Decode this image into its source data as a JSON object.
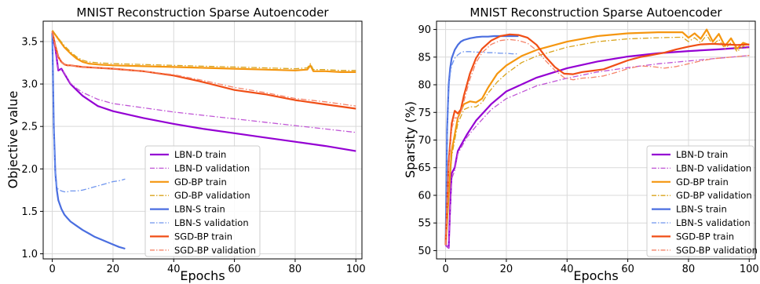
{
  "chart_data": [
    {
      "type": "line",
      "title": "MNIST Reconstruction Sparse Autoencoder",
      "xlabel": "Epochs",
      "ylabel": "Objective value",
      "xlim": [
        -3,
        102
      ],
      "ylim": [
        0.94,
        3.74
      ],
      "xticks": [
        0,
        20,
        40,
        60,
        80,
        100
      ],
      "yticks": [
        1.0,
        1.5,
        2.0,
        2.5,
        3.0,
        3.5
      ],
      "ytick_labels": [
        "1.0",
        "1.5",
        "2.0",
        "2.5",
        "3.0",
        "3.5"
      ],
      "grid": true,
      "legend_position": "lower-right",
      "series": [
        {
          "name": "LBN-D train",
          "color": "#9400d3",
          "style": "solid",
          "x": [
            0,
            1,
            2,
            3,
            4,
            5,
            6,
            8,
            10,
            15,
            20,
            30,
            40,
            50,
            60,
            70,
            80,
            90,
            100
          ],
          "values": [
            3.6,
            3.42,
            3.16,
            3.18,
            3.12,
            3.06,
            3.0,
            2.93,
            2.86,
            2.74,
            2.68,
            2.6,
            2.53,
            2.47,
            2.42,
            2.37,
            2.32,
            2.27,
            2.21
          ]
        },
        {
          "name": "LBN-D validation",
          "color": "#c055d6",
          "style": "dashdot",
          "x": [
            0,
            1,
            2,
            3,
            4,
            5,
            6,
            8,
            10,
            15,
            20,
            30,
            40,
            50,
            60,
            70,
            80,
            90,
            100
          ],
          "values": [
            3.6,
            3.42,
            3.17,
            3.17,
            3.13,
            3.07,
            3.01,
            2.95,
            2.9,
            2.82,
            2.77,
            2.72,
            2.67,
            2.63,
            2.59,
            2.55,
            2.51,
            2.47,
            2.43
          ]
        },
        {
          "name": "GD-BP train",
          "color": "#f5960f",
          "style": "solid",
          "x": [
            0,
            2,
            4,
            6,
            8,
            10,
            12,
            15,
            20,
            30,
            40,
            50,
            60,
            70,
            80,
            84,
            85,
            86,
            88,
            90,
            95,
            100
          ],
          "values": [
            3.63,
            3.53,
            3.43,
            3.36,
            3.3,
            3.26,
            3.24,
            3.23,
            3.22,
            3.21,
            3.2,
            3.19,
            3.18,
            3.17,
            3.16,
            3.17,
            3.22,
            3.15,
            3.15,
            3.15,
            3.14,
            3.14
          ]
        },
        {
          "name": "GD-BP validation",
          "color": "#d9a41c",
          "style": "dashdot",
          "x": [
            0,
            2,
            4,
            6,
            8,
            10,
            12,
            15,
            20,
            30,
            40,
            50,
            60,
            70,
            80,
            84,
            85,
            86,
            88,
            90,
            95,
            100
          ],
          "values": [
            3.63,
            3.54,
            3.45,
            3.38,
            3.32,
            3.28,
            3.26,
            3.25,
            3.24,
            3.23,
            3.22,
            3.21,
            3.2,
            3.19,
            3.18,
            3.19,
            3.24,
            3.17,
            3.17,
            3.17,
            3.16,
            3.16
          ]
        },
        {
          "name": "LBN-S train",
          "color": "#4a6ee0",
          "style": "solid",
          "x": [
            0,
            0.5,
            1,
            1.5,
            2,
            3,
            4,
            5,
            6,
            8,
            10,
            12,
            14,
            16,
            18,
            20,
            22,
            24
          ],
          "values": [
            3.6,
            2.5,
            1.95,
            1.75,
            1.63,
            1.53,
            1.46,
            1.42,
            1.38,
            1.33,
            1.28,
            1.24,
            1.2,
            1.17,
            1.14,
            1.11,
            1.08,
            1.06
          ]
        },
        {
          "name": "LBN-S validation",
          "color": "#6f95ee",
          "style": "dashdot",
          "x": [
            0,
            0.5,
            1,
            1.5,
            2,
            3,
            4,
            5,
            6,
            8,
            10,
            12,
            14,
            16,
            18,
            20,
            22,
            24
          ],
          "values": [
            3.6,
            2.45,
            1.88,
            1.78,
            1.76,
            1.74,
            1.73,
            1.73,
            1.74,
            1.74,
            1.75,
            1.77,
            1.79,
            1.81,
            1.83,
            1.85,
            1.86,
            1.88
          ]
        },
        {
          "name": "SGD-BP train",
          "color": "#f04e16",
          "style": "solid",
          "x": [
            0,
            1,
            2,
            3,
            4,
            5,
            6,
            8,
            10,
            20,
            30,
            40,
            50,
            60,
            70,
            80,
            90,
            100
          ],
          "values": [
            3.62,
            3.45,
            3.32,
            3.26,
            3.23,
            3.22,
            3.22,
            3.21,
            3.2,
            3.18,
            3.15,
            3.1,
            3.02,
            2.93,
            2.88,
            2.81,
            2.76,
            2.71
          ]
        },
        {
          "name": "SGD-BP validation",
          "color": "#f5846a",
          "style": "dashdot",
          "x": [
            0,
            1,
            2,
            3,
            4,
            5,
            6,
            8,
            10,
            20,
            30,
            40,
            50,
            60,
            70,
            80,
            90,
            100
          ],
          "values": [
            3.62,
            3.45,
            3.32,
            3.26,
            3.23,
            3.22,
            3.22,
            3.21,
            3.2,
            3.18,
            3.15,
            3.11,
            3.04,
            2.96,
            2.9,
            2.83,
            2.79,
            2.74
          ]
        }
      ]
    },
    {
      "type": "line",
      "title": "MNIST Reconstruction Sparse Autoencoder",
      "xlabel": "Epochs",
      "ylabel": "Sparsity (%)",
      "xlim": [
        -3,
        102
      ],
      "ylim": [
        48.5,
        91.5
      ],
      "xticks": [
        0,
        20,
        40,
        60,
        80,
        100
      ],
      "yticks": [
        50,
        55,
        60,
        65,
        70,
        75,
        80,
        85,
        90
      ],
      "ytick_labels": [
        "50",
        "55",
        "60",
        "65",
        "70",
        "75",
        "80",
        "85",
        "90"
      ],
      "grid": true,
      "legend_position": "lower-right",
      "series": [
        {
          "name": "LBN-D train",
          "color": "#9400d3",
          "style": "solid",
          "x": [
            0,
            1,
            1.5,
            2,
            3,
            4,
            5,
            7,
            10,
            15,
            20,
            30,
            40,
            50,
            60,
            70,
            80,
            90,
            100
          ],
          "values": [
            51,
            50.5,
            58,
            64,
            65,
            68,
            69,
            71,
            73.5,
            76.5,
            78.8,
            81.3,
            83,
            84.2,
            85.1,
            85.7,
            86.1,
            86.4,
            86.8
          ]
        },
        {
          "name": "LBN-D validation",
          "color": "#c055d6",
          "style": "dashdot",
          "x": [
            0,
            1,
            1.5,
            2,
            3,
            4,
            5,
            7,
            10,
            15,
            20,
            30,
            40,
            50,
            60,
            70,
            80,
            90,
            100
          ],
          "values": [
            51,
            50.5,
            57,
            63,
            64.5,
            67.5,
            68.5,
            70.5,
            72.5,
            75.5,
            77.5,
            79.8,
            81.2,
            82.3,
            83.1,
            83.8,
            84.3,
            84.8,
            85.3
          ]
        },
        {
          "name": "GD-BP train",
          "color": "#f5960f",
          "style": "solid",
          "x": [
            0,
            1,
            2,
            4,
            6,
            8,
            10,
            12,
            14,
            17,
            20,
            25,
            30,
            40,
            50,
            60,
            70,
            78,
            80,
            82,
            84,
            86,
            88,
            90,
            92,
            94,
            96,
            98,
            100
          ],
          "values": [
            51,
            60,
            68,
            74,
            76.5,
            77,
            76.8,
            77.5,
            79.5,
            82,
            83.5,
            85.2,
            86.3,
            87.8,
            88.8,
            89.3,
            89.5,
            89.5,
            88.5,
            89.3,
            88.3,
            90,
            87.8,
            89.2,
            87,
            88.4,
            86.5,
            87.6,
            87.2
          ]
        },
        {
          "name": "GD-BP validation",
          "color": "#d9a41c",
          "style": "dashdot",
          "x": [
            0,
            1,
            2,
            4,
            6,
            8,
            10,
            12,
            14,
            17,
            20,
            25,
            30,
            40,
            50,
            60,
            70,
            78,
            80,
            82,
            84,
            86,
            88,
            90,
            92,
            94,
            96,
            98,
            100
          ],
          "values": [
            51,
            59,
            67,
            73,
            75.5,
            76,
            76,
            76.8,
            78.5,
            80.5,
            82,
            84,
            85.2,
            86.8,
            87.8,
            88.3,
            88.5,
            88.6,
            87.8,
            88.5,
            87.6,
            89,
            87.2,
            88.2,
            86.5,
            87.6,
            86,
            87,
            86.5
          ]
        },
        {
          "name": "LBN-S train",
          "color": "#4a6ee0",
          "style": "solid",
          "x": [
            0,
            0.5,
            1,
            1.5,
            2,
            3,
            4,
            5,
            6,
            8,
            10,
            12,
            14,
            16,
            18,
            20,
            22,
            24
          ],
          "values": [
            51,
            72,
            80,
            83,
            84.8,
            86.3,
            87.2,
            87.8,
            88.1,
            88.4,
            88.6,
            88.7,
            88.7,
            88.8,
            88.8,
            88.8,
            88.8,
            88.8
          ]
        },
        {
          "name": "LBN-S validation",
          "color": "#6f95ee",
          "style": "dashdot",
          "x": [
            0,
            0.5,
            1,
            1.5,
            2,
            3,
            4,
            5,
            6,
            8,
            10,
            12,
            14,
            16,
            18,
            20,
            22,
            24
          ],
          "values": [
            51,
            70,
            79,
            82,
            83.5,
            84.8,
            85.4,
            85.8,
            86,
            86,
            85.9,
            85.9,
            85.8,
            85.8,
            85.7,
            85.7,
            85.6,
            85.6
          ]
        },
        {
          "name": "SGD-BP train",
          "color": "#f04e16",
          "style": "solid",
          "x": [
            0,
            1,
            2,
            3,
            4,
            5,
            6,
            8,
            10,
            12,
            15,
            18,
            21,
            24,
            27,
            30,
            33,
            36,
            39,
            42,
            45,
            48,
            52,
            56,
            60,
            64,
            68,
            72,
            76,
            80,
            84,
            88,
            92,
            96,
            100
          ],
          "values": [
            51,
            66,
            73,
            75.3,
            74.8,
            75.5,
            78,
            82,
            84.8,
            86.5,
            88,
            88.8,
            89.1,
            89,
            88.5,
            87.2,
            85,
            83.2,
            82,
            81.9,
            82.3,
            82.5,
            82.8,
            83.6,
            84.4,
            85,
            85.4,
            85.8,
            86.4,
            86.9,
            87.3,
            87.4,
            87.3,
            87.2,
            87.3
          ]
        },
        {
          "name": "SGD-BP validation",
          "color": "#f5846a",
          "style": "dashdot",
          "x": [
            0,
            1,
            2,
            3,
            4,
            5,
            6,
            8,
            10,
            12,
            15,
            18,
            21,
            24,
            27,
            30,
            33,
            36,
            39,
            42,
            45,
            48,
            52,
            56,
            60,
            64,
            68,
            72,
            76,
            80,
            84,
            88,
            92,
            96,
            100
          ],
          "values": [
            51,
            65,
            72,
            74,
            74,
            75,
            77,
            81,
            84,
            85.8,
            87.3,
            88,
            88.2,
            88,
            87.5,
            86.2,
            84.3,
            82.6,
            81.3,
            80.9,
            81.2,
            81.3,
            81.6,
            82.2,
            82.9,
            83.4,
            83.3,
            83,
            83.3,
            83.8,
            84.3,
            84.7,
            84.9,
            85.1,
            85.3
          ]
        }
      ]
    }
  ]
}
